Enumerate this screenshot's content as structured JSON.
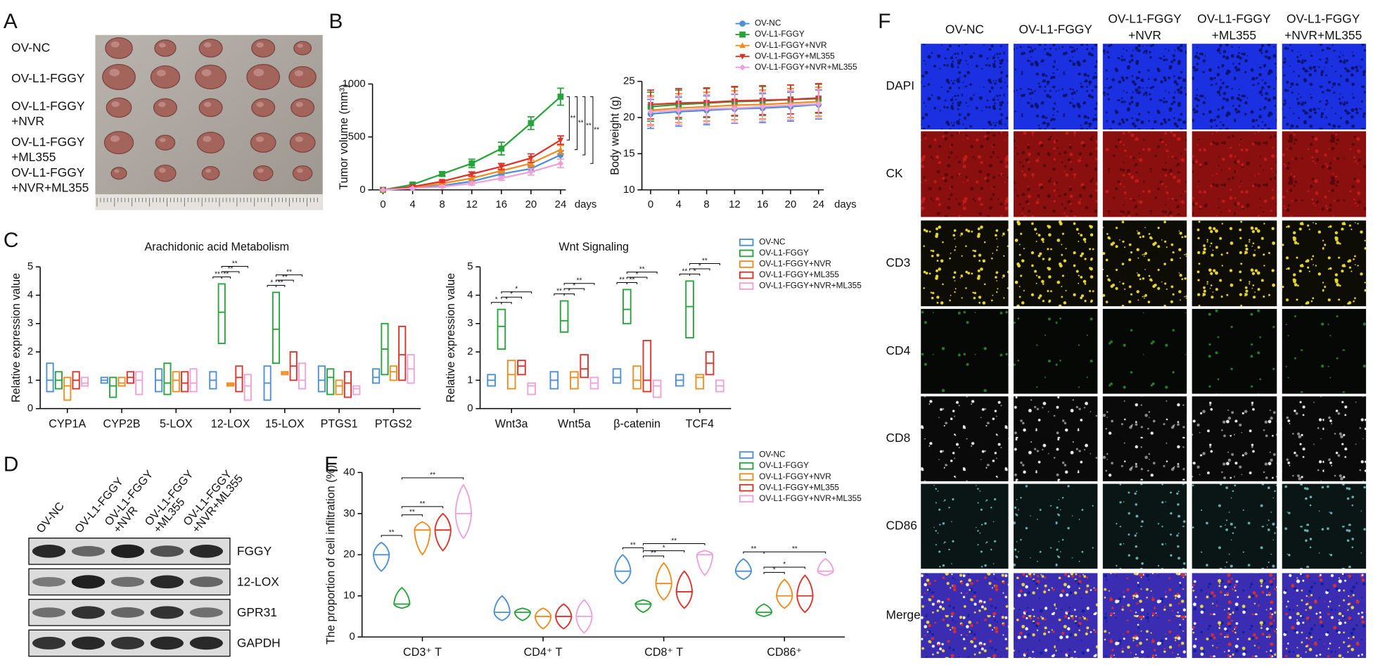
{
  "panel_labels": [
    "A",
    "B",
    "C",
    "D",
    "E",
    "F"
  ],
  "tumor_photo": {
    "rows": [
      [
        "OV-NC"
      ],
      [
        "OV-L1-FGGY"
      ],
      [
        "OV-L1-FGGY",
        "+NVR"
      ],
      [
        "OV-L1-FGGY",
        "+ML355"
      ],
      [
        "OV-L1-FGGY",
        "+NVR+ML355"
      ]
    ]
  },
  "western_blot": {
    "lanes": [
      [
        "OV-NC"
      ],
      [
        "OV-L1-FGGY"
      ],
      [
        "OV-L1-FGGY",
        "+NVR"
      ],
      [
        "OV-L1-FGGY",
        "+ML355"
      ],
      [
        "OV-L1-FGGY",
        "+NVR+ML355"
      ]
    ],
    "proteins": [
      "FGGY",
      "12-LOX",
      "GPR31",
      "GAPDH"
    ]
  },
  "immunofluorescence": {
    "columns": [
      [
        "OV-NC"
      ],
      [
        "OV-L1-FGGY"
      ],
      [
        "OV-L1-FGGY",
        "+NVR"
      ],
      [
        "OV-L1-FGGY",
        "+ML355"
      ],
      [
        "OV-L1-FGGY",
        "+NVR+ML355"
      ]
    ],
    "rows": [
      "DAPI",
      "CK",
      "CD3",
      "CD4",
      "CD8",
      "CD86",
      "Merge"
    ]
  },
  "chart_data": [
    {
      "type": "line",
      "ylabel": "Tumor volume (mm³)",
      "xlabel": "days",
      "x": [
        0,
        4,
        8,
        12,
        16,
        20,
        24
      ],
      "xlim": [
        0,
        24
      ],
      "xticks": [
        0,
        4,
        8,
        12,
        16,
        20,
        24
      ],
      "ylim": [
        0,
        1000
      ],
      "yticks": [
        0,
        500,
        1000
      ],
      "series": [
        {
          "name": "OV-NC",
          "color": "#4a8fd8",
          "marker": "circle",
          "values": [
            0,
            20,
            40,
            80,
            150,
            200,
            330
          ],
          "errors": [
            0,
            5,
            10,
            15,
            20,
            30,
            40
          ]
        },
        {
          "name": "OV-L1-FGGY",
          "color": "#27a33b",
          "marker": "square",
          "values": [
            0,
            50,
            150,
            250,
            390,
            630,
            880
          ],
          "errors": [
            0,
            10,
            20,
            40,
            60,
            60,
            80
          ]
        },
        {
          "name": "OV-L1-FGGY+NVR",
          "color": "#f08c1e",
          "marker": "triangle",
          "values": [
            0,
            25,
            60,
            110,
            180,
            250,
            380
          ],
          "errors": [
            0,
            5,
            10,
            15,
            20,
            30,
            40
          ]
        },
        {
          "name": "OV-L1-FGGY+ML355",
          "color": "#e0302a",
          "marker": "triangle-down",
          "values": [
            0,
            30,
            80,
            150,
            220,
            300,
            470
          ],
          "errors": [
            0,
            5,
            10,
            20,
            30,
            40,
            40
          ]
        },
        {
          "name": "OV-L1-FGGY+NVR+ML355",
          "color": "#f0a0d8",
          "marker": "diamond",
          "values": [
            0,
            15,
            30,
            60,
            110,
            170,
            250
          ],
          "errors": [
            0,
            5,
            10,
            15,
            20,
            30,
            40
          ]
        }
      ],
      "significance": [
        "**",
        "**",
        "**",
        "**"
      ]
    },
    {
      "type": "line",
      "ylabel": "Body weight (g)",
      "xlabel": "days",
      "x": [
        0,
        4,
        8,
        12,
        16,
        20,
        24
      ],
      "xlim": [
        0,
        24
      ],
      "xticks": [
        0,
        4,
        8,
        12,
        16,
        20,
        24
      ],
      "ylim": [
        10,
        25
      ],
      "yticks": [
        10,
        15,
        20,
        25
      ],
      "series": [
        {
          "color": "#4a8fd8",
          "marker": "circle",
          "values": [
            20.5,
            20.8,
            21.0,
            21.2,
            21.3,
            21.5,
            21.8
          ],
          "errors": [
            2,
            2,
            2,
            2,
            2,
            2,
            2
          ]
        },
        {
          "color": "#27a33b",
          "marker": "square",
          "values": [
            21.5,
            21.8,
            22.0,
            22.2,
            22.3,
            22.5,
            22.6
          ],
          "errors": [
            2,
            2,
            2,
            2,
            2,
            2,
            2
          ]
        },
        {
          "color": "#f08c1e",
          "marker": "triangle",
          "values": [
            21.0,
            21.3,
            21.5,
            21.7,
            21.8,
            22.0,
            22.2
          ],
          "errors": [
            2,
            2,
            2,
            2,
            2,
            2,
            2
          ]
        },
        {
          "color": "#e0302a",
          "marker": "triangle-down",
          "values": [
            21.8,
            22.0,
            22.1,
            22.3,
            22.4,
            22.5,
            22.7
          ],
          "errors": [
            2,
            2,
            2,
            2,
            2,
            2,
            2
          ]
        },
        {
          "color": "#f0a0d8",
          "marker": "diamond",
          "values": [
            20.8,
            21.0,
            21.2,
            21.3,
            21.5,
            21.7,
            21.9
          ],
          "errors": [
            2,
            2,
            2,
            2,
            2,
            2,
            2
          ]
        }
      ]
    },
    {
      "type": "box",
      "title": "Arachidonic acid Metabolism",
      "ylabel": "Relative expression value",
      "categories": [
        "CYP1A",
        "CYP2B",
        "5-LOX",
        "12-LOX",
        "15-LOX",
        "PTGS1",
        "PTGS2"
      ],
      "ylim": [
        0,
        5
      ],
      "yticks": [
        0,
        1,
        2,
        3,
        4,
        5
      ],
      "series": [
        {
          "color": "#4a8fd8",
          "min": [
            0.6,
            0.9,
            0.6,
            0.7,
            0.3,
            0.6,
            0.9
          ],
          "median": [
            1.0,
            1.0,
            1.0,
            1.0,
            0.9,
            1.0,
            1.1
          ],
          "max": [
            1.6,
            1.1,
            1.4,
            1.3,
            1.5,
            1.5,
            1.4
          ]
        },
        {
          "color": "#27a33b",
          "min": [
            0.7,
            0.4,
            0.5,
            2.3,
            1.6,
            0.5,
            1.2
          ],
          "median": [
            1.0,
            0.8,
            0.9,
            3.4,
            2.8,
            1.1,
            2.1
          ],
          "max": [
            1.3,
            1.1,
            1.6,
            4.4,
            4.1,
            1.4,
            3.0
          ]
        },
        {
          "color": "#f08c1e",
          "min": [
            0.3,
            0.8,
            0.6,
            0.8,
            1.2,
            0.5,
            1.0
          ],
          "median": [
            0.8,
            0.9,
            1.0,
            0.85,
            1.25,
            0.8,
            1.3
          ],
          "max": [
            1.1,
            1.1,
            1.3,
            0.9,
            1.3,
            1.0,
            1.5
          ]
        },
        {
          "color": "#e0302a",
          "min": [
            0.7,
            0.9,
            0.6,
            0.6,
            1.0,
            0.4,
            1.0
          ],
          "median": [
            1.0,
            1.1,
            0.9,
            1.1,
            1.5,
            0.9,
            1.9
          ],
          "max": [
            1.3,
            1.3,
            1.3,
            1.5,
            2.0,
            1.3,
            2.9
          ]
        },
        {
          "color": "#f0a0d8",
          "min": [
            0.8,
            0.5,
            0.6,
            0.3,
            0.7,
            0.5,
            0.9
          ],
          "median": [
            0.9,
            1.0,
            0.9,
            0.8,
            1.0,
            0.7,
            1.4
          ],
          "max": [
            1.1,
            1.3,
            1.4,
            1.2,
            1.6,
            0.8,
            1.9
          ]
        }
      ],
      "significance": [
        [],
        [],
        [],
        [
          "**",
          "**",
          "**",
          "**"
        ],
        [
          "*",
          "**",
          "**",
          "**"
        ],
        [],
        []
      ]
    },
    {
      "type": "box",
      "title": "Wnt Signaling",
      "ylabel": "Relative expression value",
      "categories": [
        "Wnt3a",
        "Wnt5a",
        "β-catenin",
        "TCF4"
      ],
      "ylim": [
        0,
        5
      ],
      "yticks": [
        0,
        1,
        2,
        3,
        4,
        5
      ],
      "series": [
        {
          "name": "OV-NC",
          "color": "#4a8fd8",
          "min": [
            0.8,
            0.7,
            0.9,
            0.8
          ],
          "median": [
            1.0,
            1.0,
            1.1,
            1.0
          ],
          "max": [
            1.2,
            1.3,
            1.4,
            1.2
          ]
        },
        {
          "name": "OV-L1-FGGY",
          "color": "#27a33b",
          "min": [
            2.1,
            2.7,
            3.0,
            2.5
          ],
          "median": [
            2.9,
            3.1,
            3.5,
            3.6
          ],
          "max": [
            3.5,
            3.8,
            4.2,
            4.5
          ]
        },
        {
          "name": "OV-L1-FGGY+NVR",
          "color": "#f08c1e",
          "min": [
            0.7,
            0.7,
            0.7,
            0.7
          ],
          "median": [
            1.2,
            1.1,
            1.0,
            1.1
          ],
          "max": [
            1.7,
            1.3,
            1.5,
            1.2
          ]
        },
        {
          "name": "OV-L1-FGGY+ML355",
          "color": "#e0302a",
          "min": [
            1.2,
            1.1,
            0.6,
            1.2
          ],
          "median": [
            1.5,
            1.4,
            1.0,
            1.6
          ],
          "max": [
            1.7,
            1.9,
            2.4,
            2.0
          ]
        },
        {
          "name": "OV-L1-FGGY+NVR+ML355",
          "color": "#f0a0d8",
          "min": [
            0.5,
            0.7,
            0.4,
            0.6
          ],
          "median": [
            0.8,
            0.9,
            0.8,
            0.8
          ],
          "max": [
            0.9,
            1.1,
            1.0,
            1.0
          ]
        }
      ],
      "significance": [
        [
          "*",
          "*",
          "*",
          "*"
        ],
        [
          "**",
          "*",
          "*",
          "**"
        ],
        [
          "**",
          "**",
          "*",
          "**"
        ],
        [
          "**",
          "*",
          "*",
          "**"
        ]
      ]
    },
    {
      "type": "violin",
      "ylabel": "The proportion of cell infiltration (%)",
      "categories": [
        "CD3⁺ T",
        "CD4⁺ T",
        "CD8⁺ T",
        "CD86⁺"
      ],
      "ylim": [
        0,
        40
      ],
      "yticks": [
        0,
        10,
        20,
        30,
        40
      ],
      "series": [
        {
          "name": "OV-NC",
          "color": "#4a8fd8",
          "min": [
            16,
            4,
            13,
            14
          ],
          "median": [
            20,
            6,
            16,
            16
          ],
          "max": [
            23,
            10,
            20,
            19
          ]
        },
        {
          "name": "OV-L1-FGGY",
          "color": "#27a33b",
          "min": [
            7,
            4,
            6,
            5
          ],
          "median": [
            8,
            6,
            8,
            6
          ],
          "max": [
            12,
            7,
            9,
            8
          ]
        },
        {
          "name": "OV-L1-FGGY+NVR",
          "color": "#f08c1e",
          "min": [
            20,
            2,
            9,
            7
          ],
          "median": [
            26,
            5,
            13,
            10
          ],
          "max": [
            28,
            7,
            18,
            14
          ]
        },
        {
          "name": "OV-L1-FGGY+ML355",
          "color": "#e0302a",
          "min": [
            21,
            2,
            7,
            6
          ],
          "median": [
            26,
            5,
            11,
            10
          ],
          "max": [
            30,
            8,
            16,
            15
          ]
        },
        {
          "name": "OV-L1-FGGY+NVR+ML355",
          "color": "#f0a0d8",
          "min": [
            24,
            1,
            15,
            15
          ],
          "median": [
            30,
            5,
            20,
            16
          ],
          "max": [
            37,
            9,
            21,
            19
          ]
        }
      ],
      "significance": [
        [
          "**",
          "**",
          "**",
          "**"
        ],
        [],
        [
          "**",
          "**",
          "*",
          "**"
        ],
        [
          "**",
          "*",
          "*",
          "**"
        ]
      ]
    }
  ]
}
